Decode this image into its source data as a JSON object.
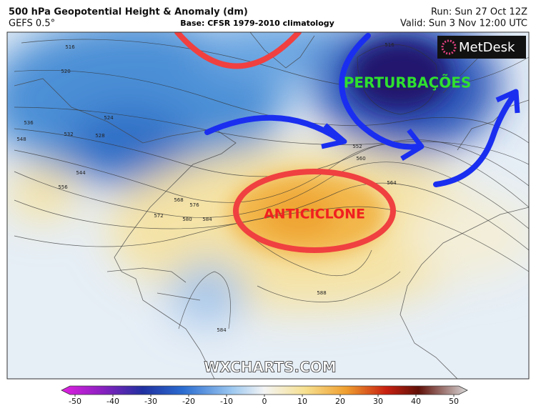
{
  "header": {
    "title": "500 hPa Geopotential Height & Anomaly (dm)",
    "model": "GEFS 0.5°",
    "base": "Base: CFSR 1979-2010 climatology",
    "run": "Run: Sun 27 Oct 12Z",
    "valid": "Valid: Sun 3 Nov 12:00 UTC"
  },
  "logo": "MetDesk",
  "annotations": {
    "low": "PERTURBAÇÕES",
    "high": "ANTICICLONE"
  },
  "watermark": "WXCHARTS.COM",
  "contour_labels": [
    516,
    520,
    524,
    528,
    532,
    536,
    544,
    548,
    556,
    552,
    560,
    564,
    568,
    572,
    576,
    580,
    584,
    588,
    584,
    516
  ],
  "colorbar": {
    "ticks": [
      -50,
      -40,
      -30,
      -20,
      -10,
      0,
      10,
      20,
      30,
      40,
      50
    ]
  }
}
